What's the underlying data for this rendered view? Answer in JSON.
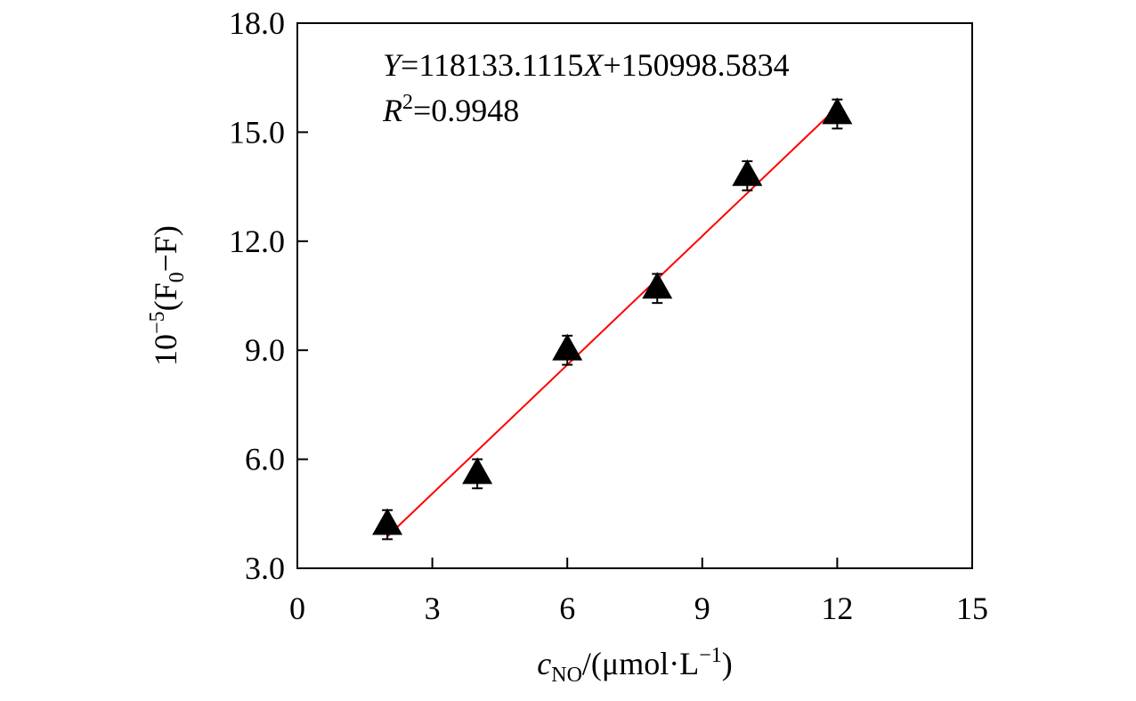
{
  "chart_data": {
    "type": "scatter",
    "x": [
      2,
      4,
      6,
      8,
      10,
      12
    ],
    "y": [
      4.2,
      5.6,
      9.0,
      10.7,
      13.8,
      15.5
    ],
    "err": [
      0.4,
      0.4,
      0.4,
      0.4,
      0.4,
      0.4
    ],
    "marker": "triangle",
    "marker_color": "#000000",
    "fit_line": {
      "x": [
        2,
        12
      ],
      "color": "#ff0000",
      "slope": 118133.1115,
      "intercept": 150998.5834
    },
    "annotations": {
      "equation": {
        "y_var": "Y",
        "eq": "=118133.1115",
        "x_var": "X",
        "rest": "+150998.5834"
      },
      "r2": {
        "r": "R",
        "sup": "2",
        "rest": "=0.9948"
      }
    },
    "xlabel": {
      "c": "c",
      "sub": "NO",
      "rest": "/(μmol·L",
      "sup": "−1",
      "close": ")"
    },
    "ylabel": {
      "base": "10",
      "sup": "−5",
      "open": "(F",
      "sub": "0",
      "rest": "−F)"
    },
    "xlim": [
      0,
      15
    ],
    "ylim": [
      3.0,
      18.0
    ],
    "xticks": [
      "0",
      "3",
      "6",
      "9",
      "12",
      "15"
    ],
    "yticks": [
      "3.0",
      "6.0",
      "9.0",
      "12.0",
      "15.0",
      "18.0"
    ],
    "grid": false,
    "legend": "none"
  }
}
